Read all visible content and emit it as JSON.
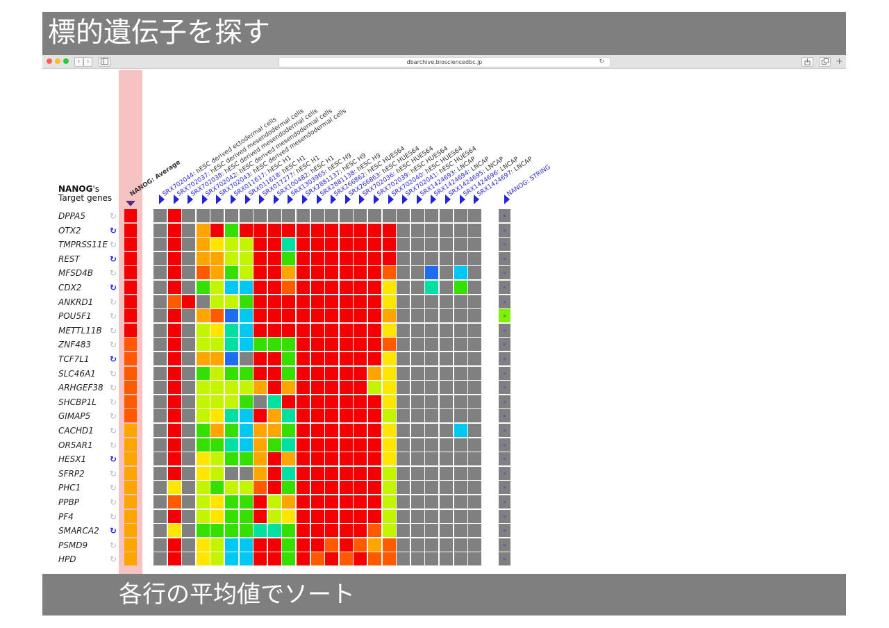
{
  "slide": {
    "title": "標的遺伝子を探す",
    "caption": "各行の平均値でソート"
  },
  "browser": {
    "url": "dbarchive.biosciencedbc.jp",
    "back_label": "‹",
    "forward_label": "›"
  },
  "heatmap": {
    "heading_gene": "NANOG",
    "heading_suffix": "'s",
    "heading_sub": "Target genes",
    "average_label": "NANOG: Average",
    "string_label": "NANOG: STRING",
    "colors": {
      "R": "#f40000",
      "O": "#ff5a00",
      "A": "#ffa500",
      "Y": "#ffe600",
      "L": "#c3f500",
      "G": "#35e000",
      "T": "#00e0a0",
      "C": "#00c8f0",
      "B": "#1e6cf0",
      "X": "#808080",
      "selected_column_bg": "#f6c2c2",
      "string_cell": "#808080",
      "string_highlight": "#7df200"
    },
    "columns": [
      {
        "id": "SRX702044",
        "desc": ": hESC derived ectodermal cells"
      },
      {
        "id": "SRX702037",
        "desc": ": hESC derived mesendodermal cells"
      },
      {
        "id": "SRX702038",
        "desc": ": hESC derived mesendodermal cells"
      },
      {
        "id": "SRX702042",
        "desc": ": hESC derived mesendodermal cells"
      },
      {
        "id": "SRX702043",
        "desc": ": hESC derived mesendodermal cells"
      },
      {
        "id": "SRX011617",
        "desc": ": hESC H1"
      },
      {
        "id": "SRX011618",
        "desc": ": hESC H1"
      },
      {
        "id": "SRX017277",
        "desc": ": hESC H1"
      },
      {
        "id": "SRX100482",
        "desc": ": hESC H1"
      },
      {
        "id": "SRX1303965",
        "desc": ": hESC H9"
      },
      {
        "id": "SRX2881137",
        "desc": ": hESC H9"
      },
      {
        "id": "SRX2881138",
        "desc": ": hESC H9"
      },
      {
        "id": "SRX266862",
        "desc": ": hESC HUES64"
      },
      {
        "id": "SRX266863",
        "desc": ": hESC HUES64"
      },
      {
        "id": "SRX702036",
        "desc": ": hESC HUES64"
      },
      {
        "id": "SRX702039",
        "desc": ": hESC HUES64"
      },
      {
        "id": "SRX702040",
        "desc": ": hESC HUES64"
      },
      {
        "id": "SRX702041",
        "desc": ": hESC HUES64"
      },
      {
        "id": "SRX1424693",
        "desc": ": LNCAP"
      },
      {
        "id": "SRX1424694",
        "desc": ": LNCAP"
      },
      {
        "id": "SRX1424695",
        "desc": ": LNCAP"
      },
      {
        "id": "SRX1424696",
        "desc": ": LNCAP"
      },
      {
        "id": "SRX1424697",
        "desc": ": LNCAP"
      }
    ],
    "rows": [
      {
        "gene": "DPPA5",
        "icon_active": false,
        "avg": "R",
        "cells": "XRXXXXXXXXXXXXXXXXXXXXX",
        "string_highlight": false
      },
      {
        "gene": "OTX2",
        "icon_active": true,
        "avg": "R",
        "cells": "XRXARGRRRRRRRRRRRXXXXXX",
        "string_highlight": false
      },
      {
        "gene": "TMPRSS11E",
        "icon_active": false,
        "avg": "R",
        "cells": "XRXAYLLRRTRRRRRRRXXXXXX",
        "string_highlight": false
      },
      {
        "gene": "REST",
        "icon_active": true,
        "avg": "R",
        "cells": "XRXAALLRRGRRRRRRRXXXXXX",
        "string_highlight": false
      },
      {
        "gene": "MFSD4B",
        "icon_active": false,
        "avg": "R",
        "cells": "XRXOAGLRRARRRRRROXXBXCX",
        "string_highlight": false
      },
      {
        "gene": "CDX2",
        "icon_active": true,
        "avg": "R",
        "cells": "XRXGLCCRRORRRRRRYXXTXGX",
        "string_highlight": false
      },
      {
        "gene": "ANKRD1",
        "icon_active": false,
        "avg": "R",
        "cells": "XORXLLGRRRRRRRRRYXXXXXX",
        "string_highlight": false
      },
      {
        "gene": "POU5F1",
        "icon_active": false,
        "avg": "R",
        "cells": "XRXAOBCRRRRRRRRRAXXXXXX",
        "string_highlight": true
      },
      {
        "gene": "METTL11B",
        "icon_active": false,
        "avg": "R",
        "cells": "XRXLYTCRRRRRRRRRYXXXXXX",
        "string_highlight": false
      },
      {
        "gene": "ZNF483",
        "icon_active": false,
        "avg": "O",
        "cells": "XRXLLTCGGGRRRRRROXXXXXX",
        "string_highlight": false
      },
      {
        "gene": "TCF7L1",
        "icon_active": true,
        "avg": "O",
        "cells": "XRXAABXRRGRRRRRRYXXXXXX",
        "string_highlight": false
      },
      {
        "gene": "SLC46A1",
        "icon_active": false,
        "avg": "O",
        "cells": "XRXGLGGRRGRRRRRAYXXXXXX",
        "string_highlight": false
      },
      {
        "gene": "ARHGEF38",
        "icon_active": false,
        "avg": "O",
        "cells": "XRXLLLLARARRRRRLYXXXXXX",
        "string_highlight": false
      },
      {
        "gene": "SHCBP1L",
        "icon_active": false,
        "avg": "O",
        "cells": "XRXLLLGXTRRRRRRRYXXXXXX",
        "string_highlight": false
      },
      {
        "gene": "GIMAP5",
        "icon_active": false,
        "avg": "O",
        "cells": "XRXLYTCRATRRRRRRLXXXXXX",
        "string_highlight": false
      },
      {
        "gene": "CACHD1",
        "icon_active": false,
        "avg": "A",
        "cells": "XRXGAGCAAGRRRRRRYXXXXCX",
        "string_highlight": false
      },
      {
        "gene": "OR5AR1",
        "icon_active": false,
        "avg": "A",
        "cells": "XRXGGTCAGTRRRRRRYXXXXXX",
        "string_highlight": false
      },
      {
        "gene": "HESX1",
        "icon_active": true,
        "avg": "A",
        "cells": "XRXYLGGARARRRRRRYXXXXXX",
        "string_highlight": false
      },
      {
        "gene": "SFRP2",
        "icon_active": false,
        "avg": "A",
        "cells": "XRXYLXXARTRRRRRRLXXXXXX",
        "string_highlight": false
      },
      {
        "gene": "PHC1",
        "icon_active": false,
        "avg": "A",
        "cells": "XYXLGLLORGRRRRRRLXXXXXX",
        "string_highlight": false
      },
      {
        "gene": "PPBP",
        "icon_active": false,
        "avg": "A",
        "cells": "XOXLYGGRLARRRRRRLXXXXXX",
        "string_highlight": false
      },
      {
        "gene": "PF4",
        "icon_active": false,
        "avg": "A",
        "cells": "XRXLYGGRLYRRRRRRLXXXXXX",
        "string_highlight": false
      },
      {
        "gene": "SMARCA2",
        "icon_active": true,
        "avg": "A",
        "cells": "XYXGGGGTTGRRRRROLXXXXXX",
        "string_highlight": false
      },
      {
        "gene": "PSMD9",
        "icon_active": false,
        "avg": "A",
        "cells": "XRXYLCCRRGRROROAOXXXXXX",
        "string_highlight": false
      },
      {
        "gene": "HPD",
        "icon_active": false,
        "avg": "A",
        "cells": "XRXYLCCRRGROROROOXXXXXX",
        "string_highlight": false
      }
    ]
  }
}
